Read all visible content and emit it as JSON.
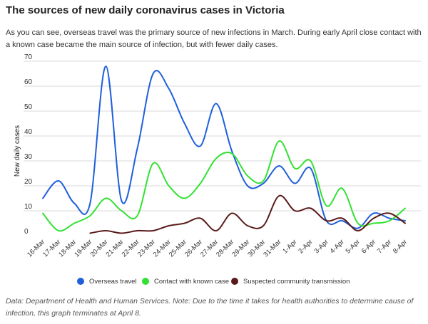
{
  "header": {
    "title": "The sources of new daily coronavirus cases in Victoria",
    "subtitle": "As you can see, overseas travel was the primary source of new infections in March. During early April close contact with a known case became the main source of infection, but with fewer daily cases."
  },
  "note": "Data: Department of Health and Human Services. Note: Due to the time it takes for health authorities to determine cause of infection, this graph terminates at April 8.",
  "chart_data": {
    "type": "line",
    "title": "",
    "xlabel": "",
    "ylabel": "New daily cases",
    "ylim": [
      0,
      70
    ],
    "yticks": [
      0,
      10,
      20,
      30,
      40,
      50,
      60,
      70
    ],
    "grid": true,
    "legend_position": "bottom",
    "categories": [
      "16-Mar",
      "17-Mar",
      "18-Mar",
      "19-Mar",
      "20-Mar",
      "21-Mar",
      "22-Mar",
      "23-Mar",
      "24-Mar",
      "25-Mar",
      "26-Mar",
      "27-Mar",
      "28-Mar",
      "29-Mar",
      "30-Mar",
      "31-Mar",
      "1-Apr",
      "2-Apr",
      "3-Apr",
      "4-Apr",
      "5-Apr",
      "6-Apr",
      "7-Apr",
      "8-Apr"
    ],
    "series": [
      {
        "name": "Overseas travel",
        "color": "#1f5fdc",
        "values": [
          15,
          22,
          13,
          13,
          68,
          14,
          35,
          65,
          59,
          45,
          36,
          53,
          34,
          20,
          21,
          28,
          21,
          27,
          6,
          6,
          3,
          9,
          7,
          6
        ]
      },
      {
        "name": "Contact with known case",
        "color": "#33e133",
        "values": [
          9,
          2,
          5,
          8,
          15,
          10,
          8,
          29,
          20,
          15,
          21,
          31,
          33,
          24,
          22,
          38,
          27,
          30,
          12,
          19,
          5,
          5,
          6,
          11
        ]
      },
      {
        "name": "Suspected community transmission",
        "color": "#5b1a1a",
        "values": [
          null,
          null,
          null,
          1,
          2,
          1,
          2,
          2,
          4,
          5,
          7,
          2,
          9,
          4,
          4,
          16,
          10,
          11,
          6,
          7,
          2,
          7,
          9,
          5
        ]
      }
    ]
  }
}
